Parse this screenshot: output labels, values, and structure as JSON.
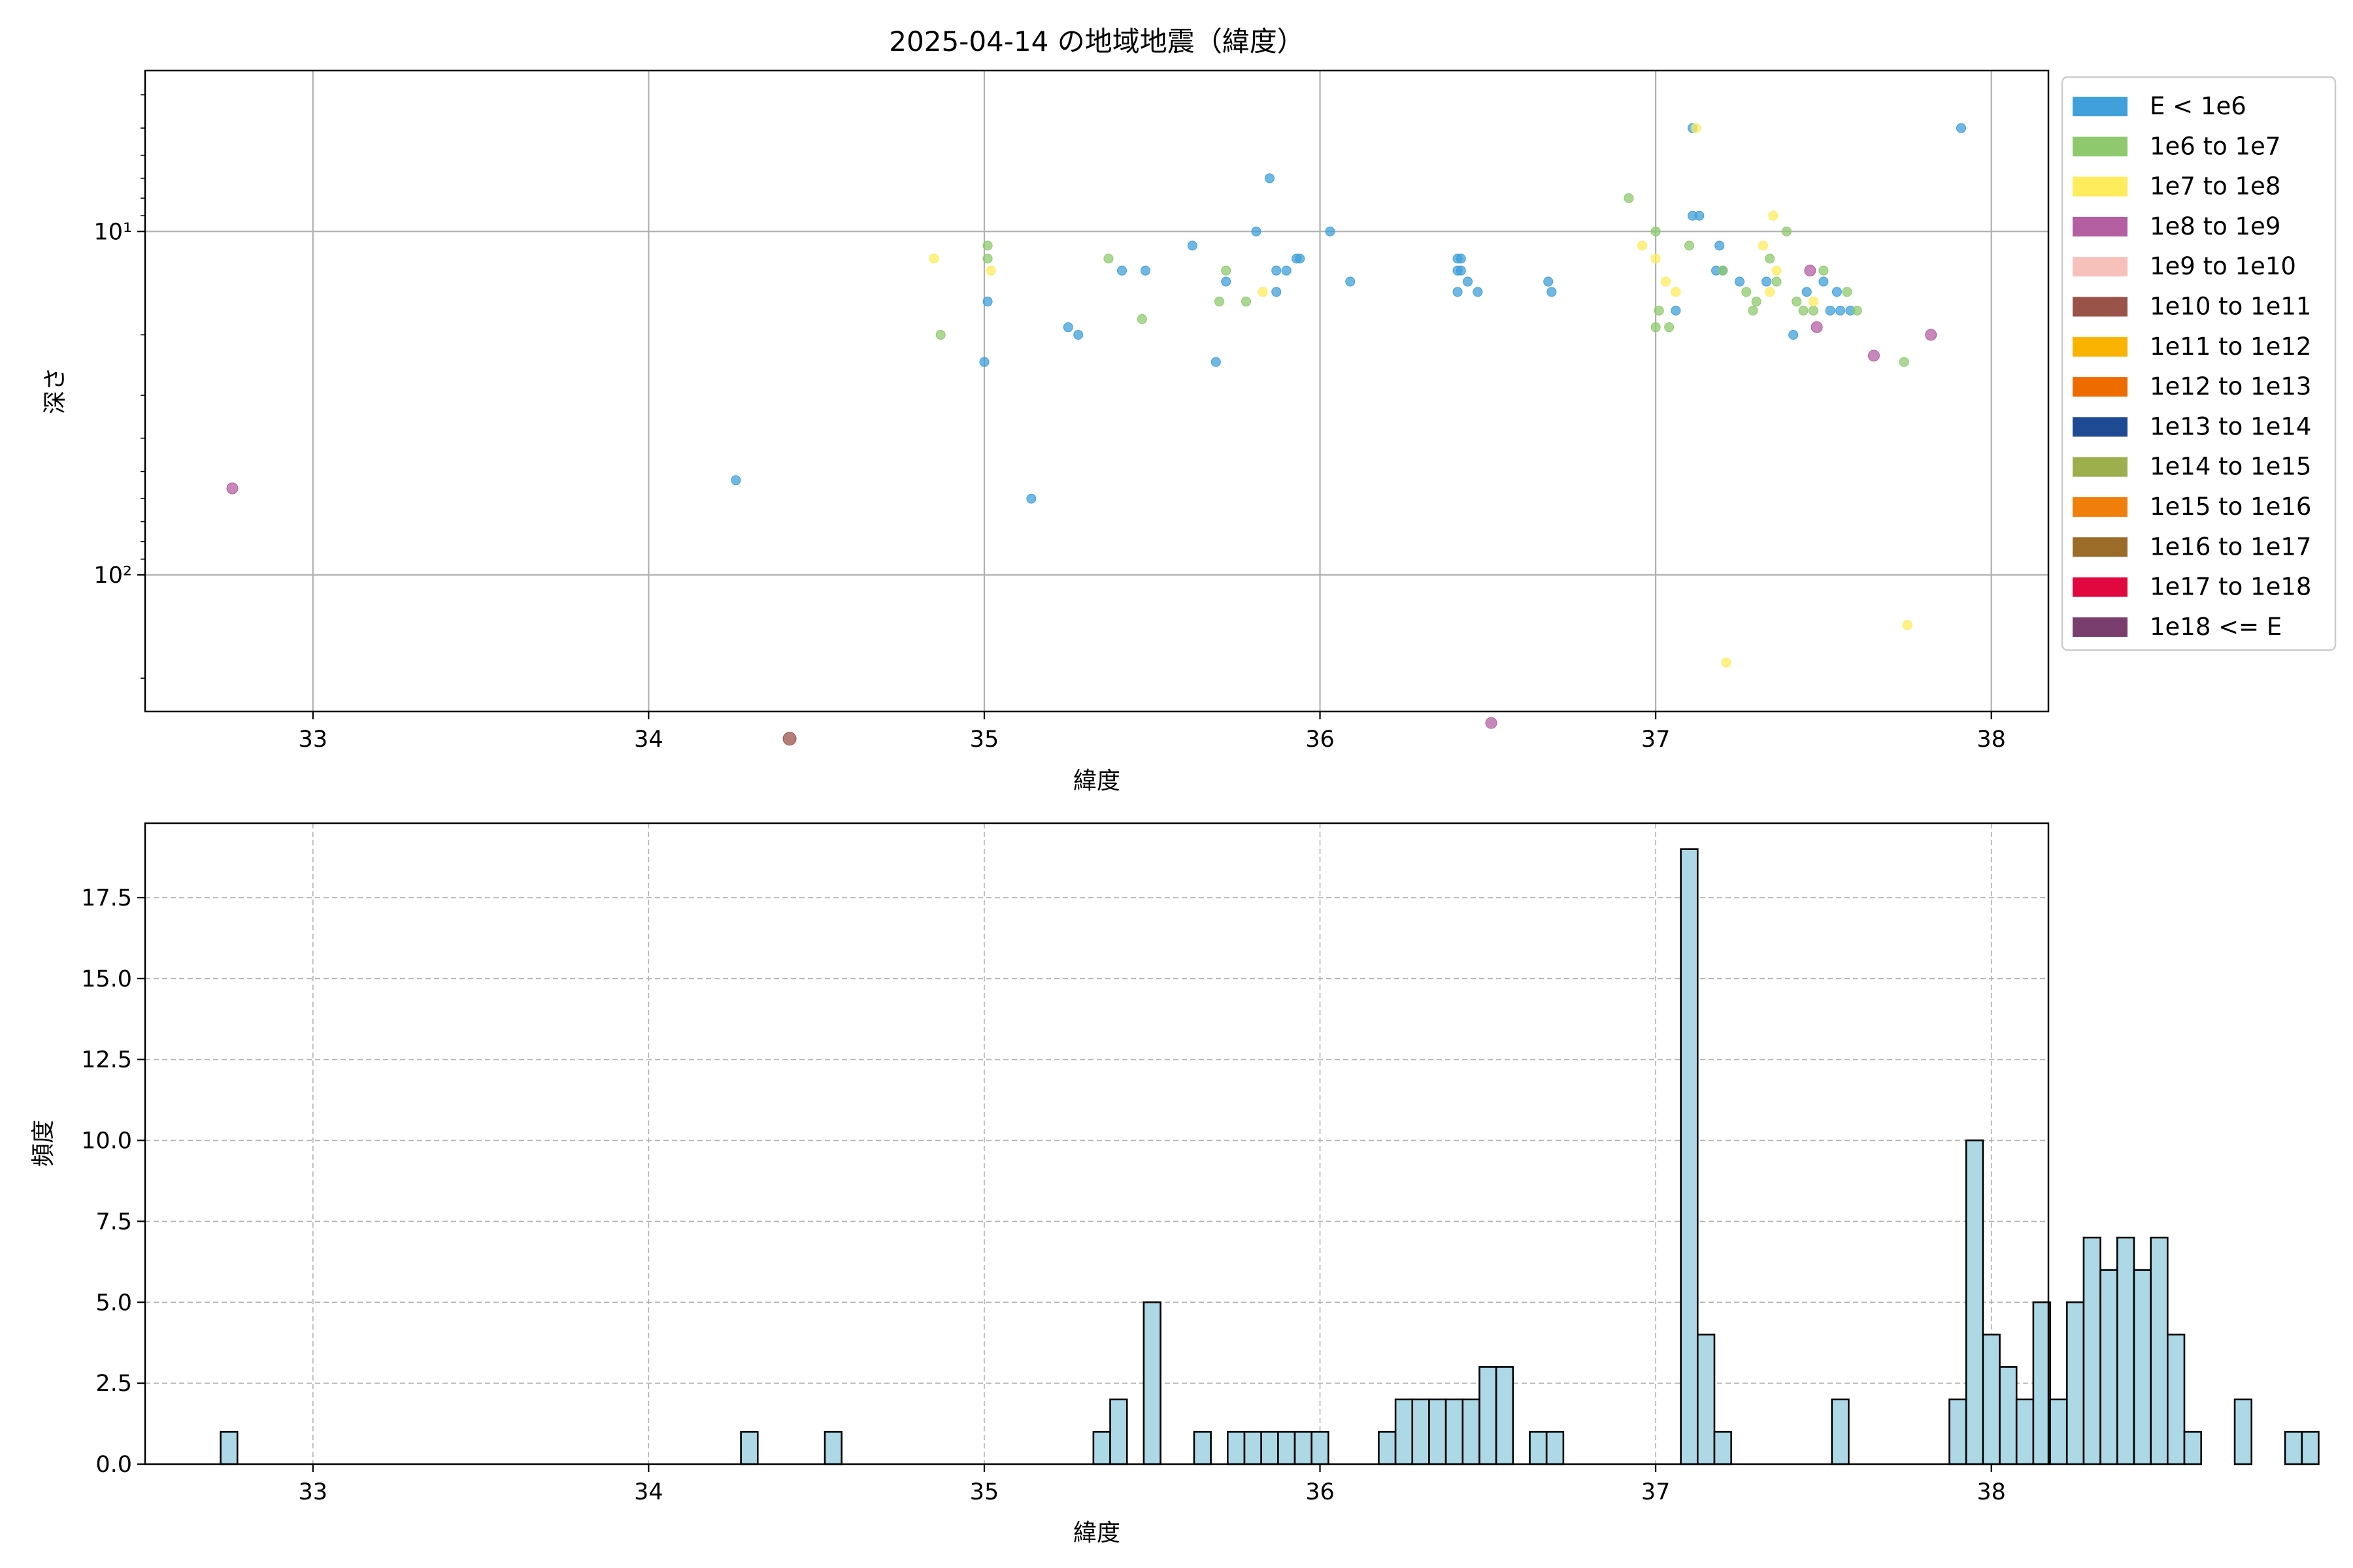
{
  "chart_data": [
    {
      "type": "scatter",
      "title": "2025-04-14 の地域地震（緯度）",
      "xlabel": "緯度",
      "ylabel": "深さ",
      "xlim": [
        32.5,
        38.17
      ],
      "ylim": [
        3.4,
        250
      ],
      "y_scale": "log",
      "y_inverted": true,
      "grid": true,
      "x_ticks": [
        33,
        34,
        35,
        36,
        37,
        38
      ],
      "y_ticks": [
        {
          "value": 10,
          "label": "10¹"
        },
        {
          "value": 100,
          "label": "10²"
        }
      ],
      "legend_position": "outside-right",
      "legend": [
        {
          "label": "E < 1e6",
          "color": "#3fa0db"
        },
        {
          "label": "1e6 to 1e7",
          "color": "#8ec96e"
        },
        {
          "label": "1e7 to 1e8",
          "color": "#ffec5c"
        },
        {
          "label": "1e8 to 1e9",
          "color": "#b55fa3"
        },
        {
          "label": "1e9 to 1e10",
          "color": "#f6c1bb"
        },
        {
          "label": "1e10 to 1e11",
          "color": "#9a5349"
        },
        {
          "label": "1e11 to 1e12",
          "color": "#f8b400"
        },
        {
          "label": "1e12 to 1e13",
          "color": "#ee6b00"
        },
        {
          "label": "1e13 to 1e14",
          "color": "#1e4a94"
        },
        {
          "label": "1e14 to 1e15",
          "color": "#9dae4c"
        },
        {
          "label": "1e15 to 1e16",
          "color": "#f07e0a"
        },
        {
          "label": "1e16 to 1e17",
          "color": "#9a6c27"
        },
        {
          "label": "1e17 to 1e18",
          "color": "#e1073f"
        },
        {
          "label": "1e18 <= E",
          "color": "#793d6e"
        }
      ],
      "series": [
        {
          "class": 0,
          "points": [
            [
              37.11,
              5
            ],
            [
              37.91,
              5
            ],
            [
              35.85,
              7
            ],
            [
              35.62,
              11
            ],
            [
              35.81,
              10
            ],
            [
              36.03,
              10
            ],
            [
              35.93,
              12
            ],
            [
              35.94,
              12
            ],
            [
              35.87,
              13
            ],
            [
              35.9,
              13
            ],
            [
              35.41,
              13
            ],
            [
              35.48,
              13
            ],
            [
              36.41,
              12
            ],
            [
              36.42,
              12
            ],
            [
              36.41,
              13
            ],
            [
              36.42,
              13
            ],
            [
              36.44,
              14
            ],
            [
              36.41,
              15
            ],
            [
              36.47,
              15
            ],
            [
              36.68,
              14
            ],
            [
              36.69,
              15
            ],
            [
              36.09,
              14
            ],
            [
              35.72,
              14
            ],
            [
              35.87,
              15
            ],
            [
              35.01,
              16
            ],
            [
              35.25,
              19
            ],
            [
              35.28,
              20
            ],
            [
              35.69,
              24
            ],
            [
              35.0,
              24
            ],
            [
              37.11,
              9
            ],
            [
              37.13,
              9
            ],
            [
              37.19,
              11
            ],
            [
              37.18,
              13
            ],
            [
              37.2,
              13
            ],
            [
              37.25,
              14
            ],
            [
              37.33,
              14
            ],
            [
              37.45,
              15
            ],
            [
              37.5,
              14
            ],
            [
              37.54,
              15
            ],
            [
              37.58,
              17
            ],
            [
              37.52,
              17
            ],
            [
              37.55,
              17
            ],
            [
              37.06,
              17
            ],
            [
              37.41,
              20
            ],
            [
              34.26,
              53
            ],
            [
              35.14,
              60
            ]
          ]
        },
        {
          "class": 1,
          "points": [
            [
              36.92,
              8
            ],
            [
              37.0,
              10
            ],
            [
              37.39,
              10
            ],
            [
              37.1,
              11
            ],
            [
              37.34,
              12
            ],
            [
              37.2,
              13
            ],
            [
              37.36,
              14
            ],
            [
              37.5,
              13
            ],
            [
              37.42,
              16
            ],
            [
              37.57,
              15
            ],
            [
              37.27,
              15
            ],
            [
              37.3,
              16
            ],
            [
              37.29,
              17
            ],
            [
              37.44,
              17
            ],
            [
              37.47,
              17
            ],
            [
              37.6,
              17
            ],
            [
              37.01,
              17
            ],
            [
              37.0,
              19
            ],
            [
              37.04,
              19
            ],
            [
              37.74,
              24
            ],
            [
              35.01,
              11
            ],
            [
              35.01,
              12
            ],
            [
              35.37,
              12
            ],
            [
              35.72,
              13
            ],
            [
              35.78,
              16
            ],
            [
              35.7,
              16
            ],
            [
              35.47,
              18
            ],
            [
              34.87,
              20
            ]
          ]
        },
        {
          "class": 2,
          "points": [
            [
              37.12,
              5
            ],
            [
              37.35,
              9
            ],
            [
              36.96,
              11
            ],
            [
              37.0,
              12
            ],
            [
              37.32,
              11
            ],
            [
              37.03,
              14
            ],
            [
              37.06,
              15
            ],
            [
              37.34,
              15
            ],
            [
              37.36,
              13
            ],
            [
              37.47,
              16
            ],
            [
              37.21,
              180
            ],
            [
              37.75,
              140
            ],
            [
              34.85,
              12
            ],
            [
              35.02,
              13
            ],
            [
              35.83,
              15
            ]
          ]
        },
        {
          "class": 3,
          "points": [
            [
              32.76,
              56
            ],
            [
              37.46,
              13
            ],
            [
              37.48,
              19
            ],
            [
              37.65,
              23
            ],
            [
              37.82,
              20
            ],
            [
              36.51,
              270
            ]
          ]
        },
        {
          "class": 5,
          "points": [
            [
              34.42,
              300
            ]
          ]
        }
      ]
    },
    {
      "type": "bar",
      "xlabel": "緯度",
      "ylabel": "頻度",
      "xlim": [
        32.5,
        38.17
      ],
      "ylim": [
        0,
        19.8
      ],
      "grid": true,
      "x_ticks": [
        33,
        34,
        35,
        36,
        37,
        38
      ],
      "y_ticks": [
        0.0,
        2.5,
        5.0,
        7.5,
        10.0,
        12.5,
        15.0,
        17.5
      ],
      "bar_color": "#add8e6",
      "bar_edge": "#000000",
      "bin_start": 32.725,
      "bin_width": 0.05,
      "counts": [
        1,
        0,
        0,
        0,
        0,
        0,
        0,
        0,
        0,
        0,
        0,
        0,
        0,
        0,
        0,
        0,
        0,
        0,
        0,
        0,
        0,
        0,
        0,
        0,
        0,
        0,
        0,
        0,
        0,
        0,
        0,
        1,
        0,
        0,
        0,
        0,
        1,
        0,
        0,
        0,
        0,
        0,
        0,
        0,
        0,
        0,
        0,
        0,
        0,
        0,
        0,
        0,
        1,
        2,
        0,
        5,
        0,
        0,
        1,
        0,
        1,
        1,
        1,
        1,
        1,
        1,
        0,
        0,
        0,
        1,
        2,
        2,
        2,
        2,
        2,
        3,
        3,
        0,
        1,
        1,
        0,
        0,
        0,
        0,
        0,
        0,
        0,
        19,
        4,
        1,
        0,
        0,
        0,
        0,
        0,
        0,
        2,
        0,
        0,
        0,
        0,
        0,
        0,
        2,
        10,
        4,
        3,
        2,
        5,
        2,
        5,
        7,
        6,
        7,
        6,
        7,
        4,
        1,
        0,
        0,
        2,
        0,
        0,
        1,
        1
      ]
    }
  ]
}
